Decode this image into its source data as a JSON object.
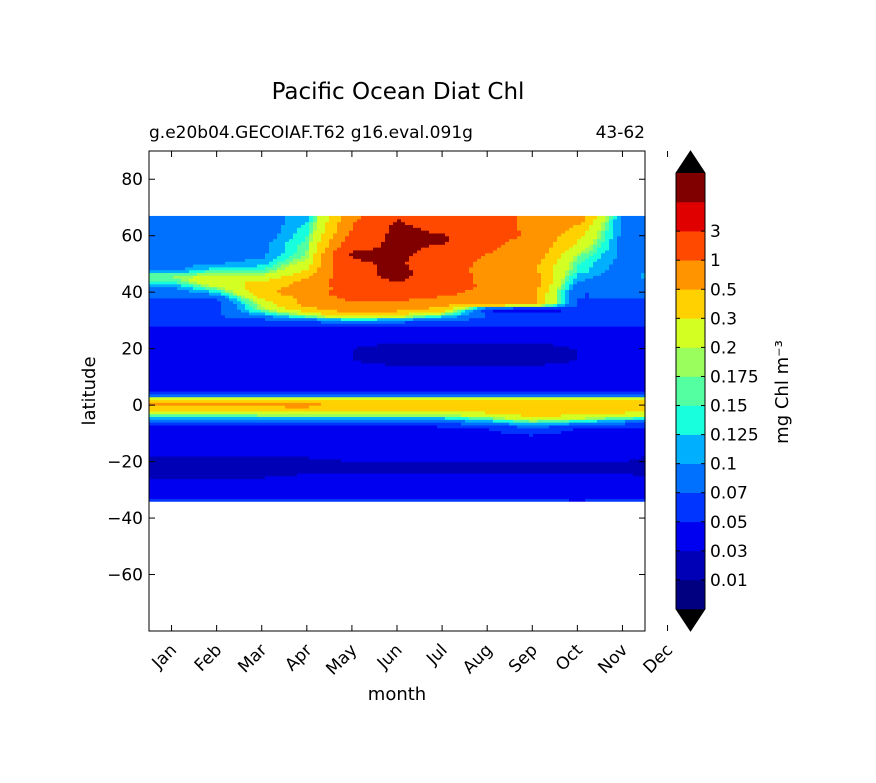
{
  "chart_data": {
    "type": "heatmap",
    "title": "Pacific Ocean Diat Chl",
    "subtitle_left": "g.e20b04.GECOIAF.T62 g16.eval.091g",
    "subtitle_right": "43-62",
    "xlabel": "month",
    "ylabel": "latitude",
    "x_ticks": [
      "Jan",
      "Feb",
      "Mar",
      "Apr",
      "May",
      "Jun",
      "Jul",
      "Aug",
      "Sep",
      "Oct",
      "Nov",
      "Dec"
    ],
    "xlim": [
      0.5,
      11.5
    ],
    "ylim": [
      -80,
      90
    ],
    "y_ticks": [
      80,
      60,
      40,
      20,
      0,
      -20,
      -40,
      -60
    ],
    "y_tick_labels": [
      "80",
      "60",
      "40",
      "20",
      "0",
      "−20",
      "−40",
      "−60"
    ],
    "data_lat_range": [
      -34,
      67
    ],
    "colorbar": {
      "label": "mg Chl m⁻³",
      "levels": [
        0.01,
        0.03,
        0.05,
        0.07,
        0.1,
        0.125,
        0.15,
        0.175,
        0.2,
        0.3,
        0.5,
        1,
        3
      ],
      "level_labels": [
        "0.01",
        "0.03",
        "0.05",
        "0.07",
        "0.1",
        "0.125",
        "0.15",
        "0.175",
        "0.2",
        "0.3",
        "0.5",
        "1",
        "3"
      ],
      "colors": [
        "#000080",
        "#0000b6",
        "#0000f1",
        "#0034ff",
        "#0070ff",
        "#00b0ff",
        "#18ffdd",
        "#54ffa2",
        "#9aff5c",
        "#d4ff22",
        "#ffd100",
        "#ff9400",
        "#ff4800",
        "#e10000",
        "#800000"
      ],
      "extend_low_color": "#000000",
      "extend_high_color": "#000000"
    },
    "profiles": {
      "months": [
        1,
        2,
        3,
        4,
        5,
        6,
        7,
        8,
        9,
        10,
        11,
        12
      ],
      "lat": [
        -34,
        -32,
        -30,
        -28,
        -24,
        -20,
        -16,
        -12,
        -8,
        -6,
        -4,
        -2,
        0,
        2,
        4,
        6,
        10,
        16,
        20,
        26,
        28,
        30,
        32,
        34,
        36,
        38,
        40,
        42,
        44,
        46,
        48,
        50,
        52,
        54,
        56,
        58,
        60,
        62,
        64,
        66
      ],
      "chl": [
        [
          0.06,
          0.045,
          0.04,
          0.04,
          0.025,
          0.02,
          0.04,
          0.045,
          0.045,
          0.06,
          0.15,
          0.25,
          0.6,
          0.35,
          0.06,
          0.04,
          0.045,
          0.04,
          0.04,
          0.045,
          0.05,
          0.06,
          0.07,
          0.06,
          0.06,
          0.07,
          0.08,
          0.1,
          0.15,
          0.18,
          0.09,
          0.09,
          0.08,
          0.08,
          0.09,
          0.09,
          0.08,
          0.08,
          0.08,
          0.08
        ],
        [
          0.06,
          0.045,
          0.04,
          0.04,
          0.025,
          0.02,
          0.04,
          0.045,
          0.045,
          0.06,
          0.15,
          0.25,
          0.6,
          0.35,
          0.06,
          0.04,
          0.045,
          0.04,
          0.04,
          0.045,
          0.05,
          0.06,
          0.07,
          0.06,
          0.06,
          0.07,
          0.12,
          0.2,
          0.3,
          0.22,
          0.15,
          0.1,
          0.09,
          0.09,
          0.09,
          0.09,
          0.08,
          0.08,
          0.08,
          0.08
        ],
        [
          0.06,
          0.045,
          0.04,
          0.04,
          0.025,
          0.02,
          0.04,
          0.045,
          0.045,
          0.06,
          0.15,
          0.28,
          0.6,
          0.35,
          0.06,
          0.04,
          0.045,
          0.04,
          0.04,
          0.045,
          0.05,
          0.06,
          0.1,
          0.18,
          0.22,
          0.3,
          0.45,
          0.4,
          0.3,
          0.2,
          0.15,
          0.12,
          0.1,
          0.09,
          0.09,
          0.09,
          0.08,
          0.08,
          0.08,
          0.08
        ],
        [
          0.06,
          0.045,
          0.04,
          0.04,
          0.03,
          0.025,
          0.04,
          0.045,
          0.045,
          0.06,
          0.15,
          0.3,
          0.6,
          0.35,
          0.06,
          0.04,
          0.045,
          0.035,
          0.035,
          0.045,
          0.05,
          0.07,
          0.2,
          0.4,
          0.6,
          0.6,
          0.7,
          0.6,
          0.6,
          0.4,
          0.3,
          0.25,
          0.2,
          0.18,
          0.17,
          0.16,
          0.15,
          0.14,
          0.13,
          0.12
        ],
        [
          0.06,
          0.045,
          0.04,
          0.04,
          0.03,
          0.03,
          0.04,
          0.045,
          0.045,
          0.06,
          0.15,
          0.3,
          0.5,
          0.35,
          0.06,
          0.04,
          0.045,
          0.03,
          0.03,
          0.04,
          0.05,
          0.1,
          0.4,
          0.7,
          0.9,
          1.2,
          1.5,
          1.5,
          1.8,
          2.0,
          2.2,
          2.5,
          3.0,
          3.5,
          2.0,
          1.5,
          1.2,
          1.0,
          1.0,
          0.8
        ],
        [
          0.06,
          0.045,
          0.04,
          0.04,
          0.03,
          0.03,
          0.04,
          0.045,
          0.045,
          0.06,
          0.15,
          0.3,
          0.5,
          0.35,
          0.06,
          0.04,
          0.045,
          0.025,
          0.025,
          0.04,
          0.05,
          0.08,
          0.3,
          0.6,
          0.8,
          1.2,
          1.8,
          2.5,
          3.2,
          4.0,
          4.0,
          3.5,
          3.5,
          4.0,
          4.0,
          4.0,
          4.0,
          4.0,
          3.5,
          3.0
        ],
        [
          0.06,
          0.045,
          0.04,
          0.04,
          0.03,
          0.03,
          0.04,
          0.045,
          0.045,
          0.07,
          0.15,
          0.3,
          0.5,
          0.35,
          0.06,
          0.04,
          0.045,
          0.025,
          0.025,
          0.04,
          0.05,
          0.07,
          0.15,
          0.4,
          0.6,
          0.9,
          1.2,
          1.5,
          1.5,
          1.8,
          1.6,
          1.6,
          1.8,
          2.0,
          2.5,
          3.5,
          3.5,
          2.5,
          2.0,
          1.5
        ],
        [
          0.06,
          0.045,
          0.04,
          0.04,
          0.03,
          0.03,
          0.04,
          0.045,
          0.05,
          0.1,
          0.2,
          0.35,
          0.45,
          0.4,
          0.06,
          0.04,
          0.045,
          0.025,
          0.025,
          0.04,
          0.05,
          0.06,
          0.07,
          0.05,
          0.6,
          0.7,
          0.8,
          0.9,
          0.8,
          0.8,
          0.7,
          0.8,
          0.9,
          1.0,
          1.1,
          1.2,
          1.3,
          1.3,
          1.2,
          1.2
        ],
        [
          0.06,
          0.045,
          0.04,
          0.04,
          0.03,
          0.03,
          0.04,
          0.045,
          0.06,
          0.15,
          0.3,
          0.45,
          0.5,
          0.4,
          0.06,
          0.04,
          0.045,
          0.025,
          0.025,
          0.04,
          0.05,
          0.06,
          0.07,
          0.025,
          0.6,
          0.6,
          0.6,
          0.7,
          0.7,
          0.7,
          0.6,
          0.6,
          0.7,
          0.8,
          0.8,
          0.8,
          0.9,
          0.9,
          0.9,
          0.9
        ],
        [
          0.05,
          0.045,
          0.04,
          0.04,
          0.03,
          0.03,
          0.04,
          0.045,
          0.05,
          0.12,
          0.25,
          0.4,
          0.45,
          0.35,
          0.06,
          0.04,
          0.045,
          0.03,
          0.03,
          0.04,
          0.05,
          0.06,
          0.07,
          0.06,
          0.07,
          0.07,
          0.07,
          0.08,
          0.1,
          0.12,
          0.15,
          0.15,
          0.17,
          0.2,
          0.25,
          0.3,
          0.35,
          0.4,
          0.5,
          0.7
        ],
        [
          0.06,
          0.045,
          0.04,
          0.04,
          0.03,
          0.03,
          0.04,
          0.045,
          0.05,
          0.08,
          0.2,
          0.35,
          0.45,
          0.35,
          0.06,
          0.04,
          0.045,
          0.035,
          0.035,
          0.045,
          0.05,
          0.06,
          0.07,
          0.06,
          0.06,
          0.07,
          0.07,
          0.08,
          0.08,
          0.08,
          0.08,
          0.085,
          0.09,
          0.09,
          0.09,
          0.09,
          0.09,
          0.09,
          0.09,
          0.09
        ],
        [
          0.05,
          0.045,
          0.04,
          0.04,
          0.025,
          0.02,
          0.04,
          0.045,
          0.045,
          0.06,
          0.15,
          0.3,
          0.5,
          0.35,
          0.06,
          0.04,
          0.045,
          0.04,
          0.04,
          0.045,
          0.05,
          0.06,
          0.07,
          0.06,
          0.06,
          0.07,
          0.08,
          0.09,
          0.12,
          0.15,
          0.09,
          0.09,
          0.08,
          0.08,
          0.08,
          0.08,
          0.08,
          0.08,
          0.08,
          0.08
        ]
      ]
    }
  }
}
